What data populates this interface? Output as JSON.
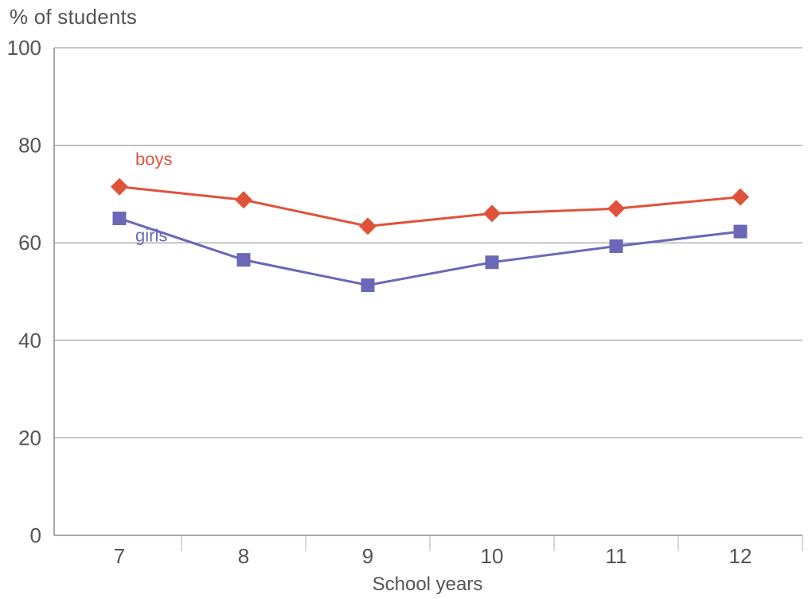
{
  "chart_data": {
    "type": "line",
    "ylabel": "% of students",
    "xlabel": "School years",
    "categories": [
      "7",
      "8",
      "9",
      "10",
      "11",
      "12"
    ],
    "ylim": [
      0,
      100
    ],
    "yticks": [
      0,
      20,
      40,
      60,
      80,
      100
    ],
    "grid": "horizontal",
    "series": [
      {
        "name": "boys",
        "marker": "diamond",
        "color": "#e0533b",
        "values": [
          71.5,
          68.8,
          63.4,
          66.0,
          67.0,
          69.4
        ]
      },
      {
        "name": "girls",
        "marker": "square",
        "color": "#6b68b8",
        "values": [
          65.0,
          56.5,
          51.3,
          56.0,
          59.3,
          62.3
        ]
      }
    ]
  }
}
